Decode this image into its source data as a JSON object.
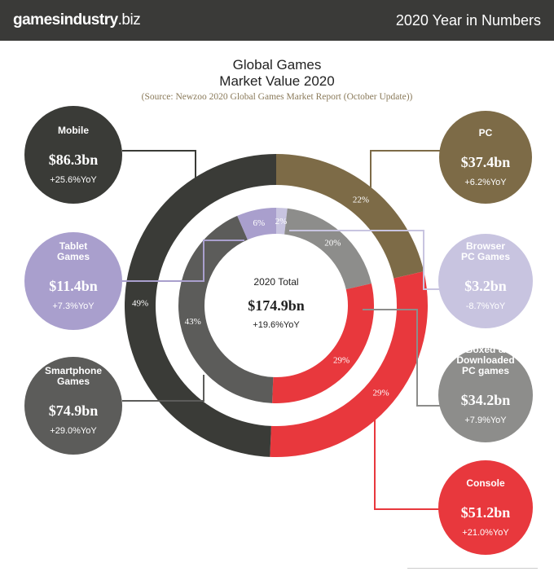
{
  "header": {
    "brand": "gamesindustry",
    "brand_tld": ".biz",
    "edition": "2020 Year in Numbers"
  },
  "title_line1": "Global Games",
  "title_line2": "Market Value 2020",
  "source": "(Source: Newzoo 2020 Global Games Market Report (October Update))",
  "colors": {
    "mobile": "#3a3b37",
    "pc": "#7d6b47",
    "console": "#e8383d",
    "tablet": "#a99fcd",
    "browser": "#c8c4e0",
    "boxed": "#8d8d8b",
    "smartphone": "#5c5c5a"
  },
  "chart_data": {
    "type": "pie",
    "title": "Global Games Market Value 2020",
    "center": {
      "label": "2020 Total",
      "value": "$174.9bn",
      "yoy": "+19.6%YoY"
    },
    "outer_ring": [
      {
        "name": "Mobile",
        "value": 86.3,
        "display_value": "$86.3bn",
        "yoy": "+25.6%YoY",
        "share_label": "49%"
      },
      {
        "name": "PC",
        "value": 37.4,
        "display_value": "$37.4bn",
        "yoy": "+6.2%YoY",
        "share_label": "22%"
      },
      {
        "name": "Console",
        "value": 51.2,
        "display_value": "$51.2bn",
        "yoy": "+21.0%YoY",
        "share_label": "29%"
      }
    ],
    "inner_ring": [
      {
        "name": "Tablet Games",
        "value": 11.4,
        "display_value": "$11.4bn",
        "yoy": "+7.3%YoY",
        "share_label": "6%"
      },
      {
        "name": "Browser PC Games",
        "value": 3.2,
        "display_value": "$3.2bn",
        "yoy": "-8.7%YoY",
        "share_label": "2%"
      },
      {
        "name": "Boxed & Downloaded PC games",
        "value": 34.2,
        "display_value": "$34.2bn",
        "yoy": "+7.9%YoY",
        "share_label": "20%"
      },
      {
        "name": "Console",
        "value": 51.2,
        "share_label": "29%"
      },
      {
        "name": "Smartphone Games",
        "value": 74.9,
        "display_value": "$74.9bn",
        "yoy": "+29.0%YoY",
        "share_label": "43%"
      }
    ]
  }
}
